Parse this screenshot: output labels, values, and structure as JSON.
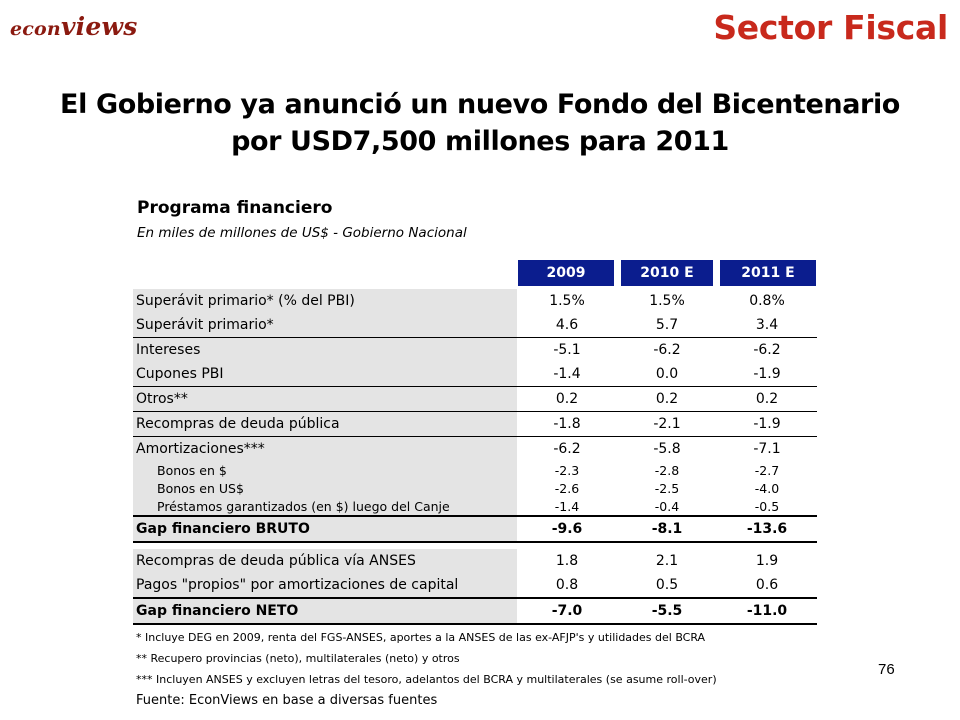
{
  "brand": {
    "logo_prefix": "econ",
    "logo_suffix": "views",
    "section": "Sector Fiscal"
  },
  "headline": {
    "line1": "El Gobierno ya anunció un nuevo Fondo del Bicentenario",
    "line2": "por USD7,500 millones para 2011"
  },
  "table": {
    "title": "Programa financiero",
    "subtitle": "En miles de millones de US$ - Gobierno Nacional",
    "columns": [
      "2009",
      "2010 E",
      "2011 E"
    ],
    "rows": [
      {
        "label": "Superávit primario* (% del PBI)",
        "values": [
          "1.5%",
          "1.5%",
          "0.8%"
        ]
      },
      {
        "label": "Superávit primario*",
        "values": [
          "4.6",
          "5.7",
          "3.4"
        ]
      },
      {
        "label": "Intereses",
        "values": [
          "-5.1",
          "-6.2",
          "-6.2"
        ]
      },
      {
        "label": "Cupones PBI",
        "values": [
          "-1.4",
          "0.0",
          "-1.9"
        ]
      },
      {
        "label": "Otros**",
        "values": [
          "0.2",
          "0.2",
          "0.2"
        ]
      },
      {
        "label": "Recompras de deuda pública",
        "values": [
          "-1.8",
          "-2.1",
          "-1.9"
        ]
      },
      {
        "label": "Amortizaciones***",
        "values": [
          "-6.2",
          "-5.8",
          "-7.1"
        ]
      },
      {
        "label": "Bonos en $",
        "values": [
          "-2.3",
          "-2.8",
          "-2.7"
        ]
      },
      {
        "label": "Bonos en US$",
        "values": [
          "-2.6",
          "-2.5",
          "-4.0"
        ]
      },
      {
        "label": "Préstamos garantizados (en $) luego del Canje",
        "values": [
          "-1.4",
          "-0.4",
          "-0.5"
        ]
      },
      {
        "label": "Gap financiero BRUTO",
        "values": [
          "-9.6",
          "-8.1",
          "-13.6"
        ]
      },
      {
        "label": "Recompras de deuda pública vía ANSES",
        "values": [
          "1.8",
          "2.1",
          "1.9"
        ]
      },
      {
        "label": "Pagos \"propios\" por amortizaciones de capital",
        "values": [
          "0.8",
          "0.5",
          "0.6"
        ]
      },
      {
        "label": "Gap financiero NETO",
        "values": [
          "-7.0",
          "-5.5",
          "-11.0"
        ]
      }
    ]
  },
  "notes": [
    "* Incluye DEG en 2009, renta del FGS-ANSES, aportes a la ANSES de las ex-AFJP's y utilidades del BCRA",
    "** Recupero provincias (neto), multilaterales (neto) y otros",
    "*** Incluyen ANSES y excluyen letras del tesoro, adelantos del BCRA y multilaterales (se asume roll-over)"
  ],
  "source": "Fuente: EconViews en base a diversas fuentes",
  "page_number": "76",
  "colors": {
    "brand_red": "#c8291c",
    "header_blue": "#0b1d8e",
    "label_gray": "#e4e4e4"
  }
}
